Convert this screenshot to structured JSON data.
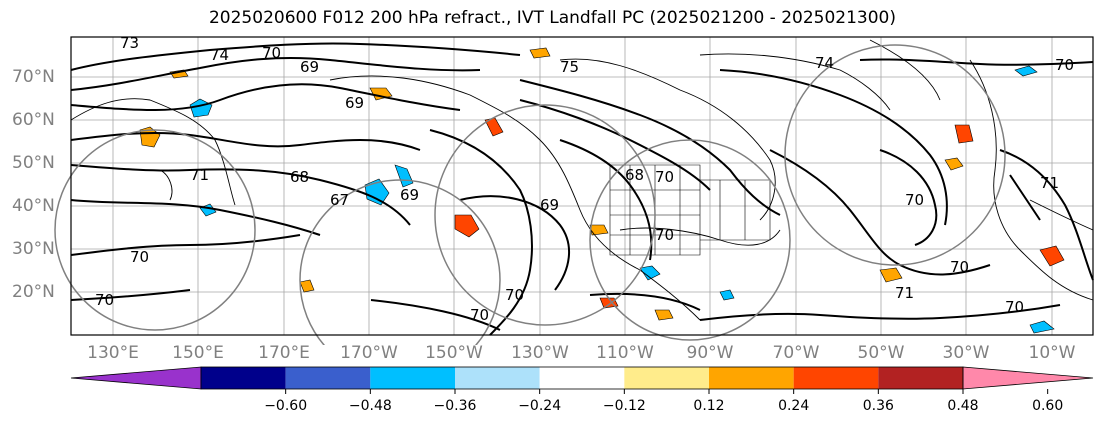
{
  "title": "2025020600 F012 200 hPa refract., IVT Landfall PC (2025021200 - 2025021300)",
  "lat_labels": [
    "70°N",
    "60°N",
    "50°N",
    "40°N",
    "30°N",
    "20°N"
  ],
  "lon_labels": [
    "130°E",
    "150°E",
    "170°E",
    "170°W",
    "150°W",
    "130°W",
    "110°W",
    "90°W",
    "70°W",
    "50°W",
    "30°W",
    "10°W"
  ],
  "contour_labels": [
    "73",
    "74",
    "70",
    "69",
    "69",
    "75",
    "74",
    "70",
    "68",
    "67",
    "69",
    "69",
    "68",
    "70",
    "70",
    "70",
    "70",
    "71",
    "70",
    "71",
    "70",
    "71",
    "70",
    "70",
    "70"
  ],
  "colorbar": {
    "colors": [
      "#9932CC",
      "#00008B",
      "#3A5FCD",
      "#00BFFF",
      "#ADE1FA",
      "#FFFFFF",
      "#FFEC8B",
      "#FFA500",
      "#FF4500",
      "#B22222",
      "#FF88AA"
    ],
    "tick_labels": [
      "−0.60",
      "−0.48",
      "−0.36",
      "−0.24",
      "−0.12",
      "0.12",
      "0.24",
      "0.36",
      "0.48",
      "0.60"
    ]
  },
  "colors": {
    "contour": "#000000",
    "grid": "#808080",
    "circle": "#808080",
    "axis_text": "#808080"
  }
}
